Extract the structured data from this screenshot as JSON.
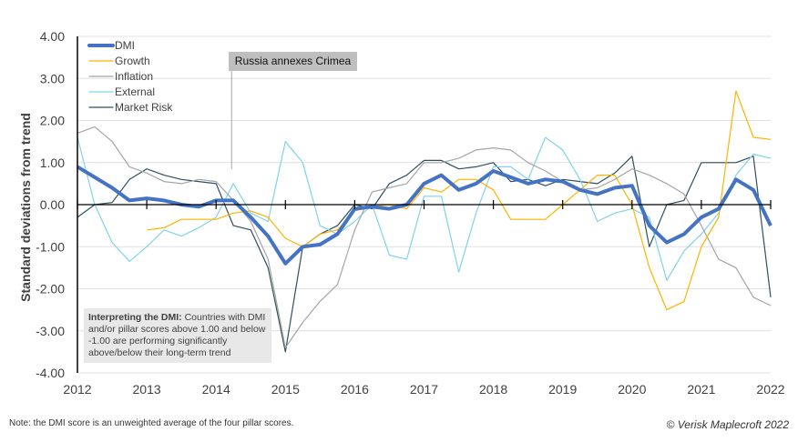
{
  "chart_data": {
    "type": "line",
    "ylabel": "Standard deviations from  trend",
    "ylim": [
      -4,
      4
    ],
    "yticks": [
      "4.00",
      "3.00",
      "2.00",
      "1.00",
      "0.00",
      "-1.00",
      "-2.00",
      "-3.00",
      "-4.00"
    ],
    "xlim": [
      2012,
      2022
    ],
    "xticks": [
      "2012",
      "2013",
      "2014",
      "2015",
      "2016",
      "2017",
      "2018",
      "2019",
      "2020",
      "2021",
      "2022"
    ],
    "grid": true,
    "legend_position": "top-left",
    "x": [
      2012,
      2012.25,
      2012.5,
      2012.75,
      2013,
      2013.25,
      2013.5,
      2013.75,
      2014,
      2014.25,
      2014.5,
      2014.75,
      2015,
      2015.25,
      2015.5,
      2015.75,
      2016,
      2016.25,
      2016.5,
      2016.75,
      2017,
      2017.25,
      2017.5,
      2017.75,
      2018,
      2018.25,
      2018.5,
      2018.75,
      2019,
      2019.25,
      2019.5,
      2019.75,
      2020,
      2020.25,
      2020.5,
      2020.75,
      2021,
      2021.25,
      2021.5,
      2021.75,
      2022
    ],
    "series": [
      {
        "name": "DMI",
        "color": "#4472c4",
        "values": [
          0.9,
          0.65,
          0.4,
          0.1,
          0.15,
          0.1,
          0.0,
          -0.05,
          0.1,
          0.1,
          -0.3,
          -0.75,
          -1.4,
          -1.0,
          -0.95,
          -0.7,
          -0.1,
          -0.05,
          -0.1,
          0.0,
          0.5,
          0.7,
          0.35,
          0.5,
          0.8,
          0.65,
          0.5,
          0.6,
          0.55,
          0.35,
          0.25,
          0.4,
          0.45,
          -0.5,
          -0.9,
          -0.7,
          -0.3,
          -0.1,
          0.6,
          0.35,
          -0.5
        ]
      },
      {
        "name": "Growth",
        "color": "#ffb300",
        "values": [
          null,
          null,
          null,
          null,
          -0.6,
          -0.55,
          -0.35,
          -0.35,
          -0.35,
          -0.2,
          -0.15,
          -0.3,
          -0.8,
          -1.0,
          -0.7,
          -0.6,
          -0.15,
          -0.05,
          0.0,
          -0.1,
          0.4,
          0.3,
          0.6,
          0.6,
          0.35,
          -0.35,
          -0.35,
          -0.35,
          0.0,
          0.35,
          0.7,
          0.7,
          0.0,
          -1.5,
          -2.5,
          -2.3,
          -1.0,
          -0.3,
          2.7,
          1.6,
          1.55
        ]
      },
      {
        "name": "Inflation",
        "color": "#a5a5a5",
        "values": [
          1.7,
          1.85,
          1.5,
          0.9,
          0.75,
          0.55,
          0.5,
          0.6,
          0.55,
          0.1,
          -0.4,
          -1.3,
          -3.4,
          -2.8,
          -2.3,
          -1.9,
          -0.6,
          0.3,
          0.4,
          0.5,
          1.0,
          1.0,
          1.1,
          1.3,
          1.35,
          1.3,
          1.0,
          0.8,
          0.55,
          0.35,
          0.4,
          0.6,
          0.85,
          0.7,
          0.5,
          0.25,
          -0.5,
          -1.3,
          -1.5,
          -2.2,
          -2.4
        ]
      },
      {
        "name": "External",
        "color": "#7fd3ea",
        "values": [
          1.6,
          0.0,
          -0.9,
          -1.35,
          -1.0,
          -0.6,
          -0.75,
          -0.55,
          -0.3,
          0.5,
          -0.2,
          -0.4,
          1.5,
          1.0,
          -0.5,
          -0.7,
          -0.4,
          0.0,
          -1.2,
          -1.3,
          0.2,
          0.2,
          -1.6,
          -0.2,
          0.9,
          0.9,
          0.6,
          1.6,
          1.3,
          0.6,
          -0.4,
          -0.2,
          -0.1,
          -0.3,
          -1.8,
          -1.1,
          -0.7,
          -0.2,
          0.7,
          1.2,
          1.1
        ]
      },
      {
        "name": "Market Risk",
        "color": "#2f4f5f",
        "values": [
          -0.3,
          0.0,
          0.05,
          0.6,
          0.85,
          0.7,
          0.6,
          0.55,
          0.5,
          -0.5,
          -0.6,
          -1.5,
          -3.5,
          -1.0,
          -0.7,
          -0.5,
          0.0,
          -0.1,
          0.5,
          0.7,
          1.05,
          1.05,
          0.85,
          0.9,
          1.0,
          0.55,
          0.6,
          0.45,
          0.6,
          0.55,
          0.5,
          0.75,
          1.15,
          -1.0,
          0.0,
          0.1,
          1.0,
          1.0,
          1.0,
          1.15,
          -2.2
        ]
      }
    ],
    "annotations": [
      {
        "text": "Russia annexes Crimea",
        "x": 2014.25
      }
    ]
  },
  "interpretation": {
    "bold": "Interpreting the DMI:",
    "text": " Countries with DMI and/or pillar scores above 1.00 and below -1.00 are performing significantly above/below their long-term trend"
  },
  "note": "Note: the DMI score is an unweighted average of the four pillar scores.",
  "credit": "© Verisk Maplecroft 2022"
}
